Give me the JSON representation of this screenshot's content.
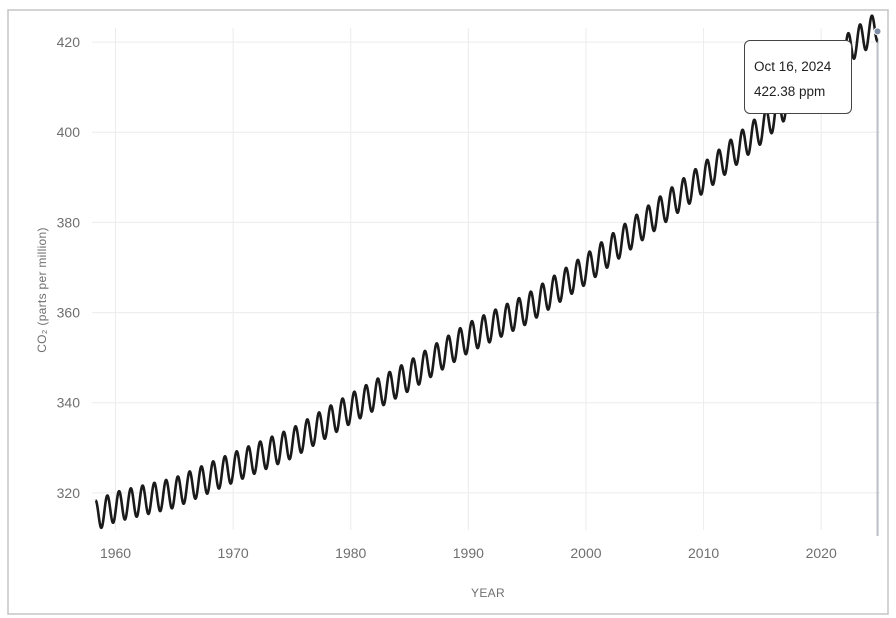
{
  "chart_data": {
    "type": "line",
    "xlabel": "YEAR",
    "ylabel": "CO₂ (parts per million)",
    "xlim": [
      1958,
      2025
    ],
    "ylim": [
      308,
      428
    ],
    "x_ticks": [
      1960,
      1970,
      1980,
      1990,
      2000,
      2010,
      2020
    ],
    "y_ticks": [
      320,
      340,
      360,
      380,
      400,
      420
    ],
    "grid": true,
    "series": [
      {
        "color": "#1a1a1a",
        "seasonal_amplitude_ppm": 3.3,
        "trend_points": [
          [
            1958.3,
            315.0
          ],
          [
            1960,
            316.9
          ],
          [
            1965,
            320.0
          ],
          [
            1970,
            325.6
          ],
          [
            1975,
            331.0
          ],
          [
            1980,
            338.7
          ],
          [
            1985,
            346.0
          ],
          [
            1990,
            354.4
          ],
          [
            1995,
            360.8
          ],
          [
            2000,
            369.6
          ],
          [
            2005,
            379.8
          ],
          [
            2010,
            389.9
          ],
          [
            2015,
            401.0
          ],
          [
            2020,
            414.2
          ],
          [
            2024.8,
            423.5
          ]
        ]
      }
    ],
    "tooltip": {
      "date": "Oct 16, 2024",
      "value": "422.38 ppm",
      "x": 2024.79,
      "y": 422.38
    }
  },
  "colors": {
    "line": "#1a1a1a",
    "grid": "#ececec",
    "cursor": "#b9bdc6",
    "border": "#c6c6c6"
  }
}
